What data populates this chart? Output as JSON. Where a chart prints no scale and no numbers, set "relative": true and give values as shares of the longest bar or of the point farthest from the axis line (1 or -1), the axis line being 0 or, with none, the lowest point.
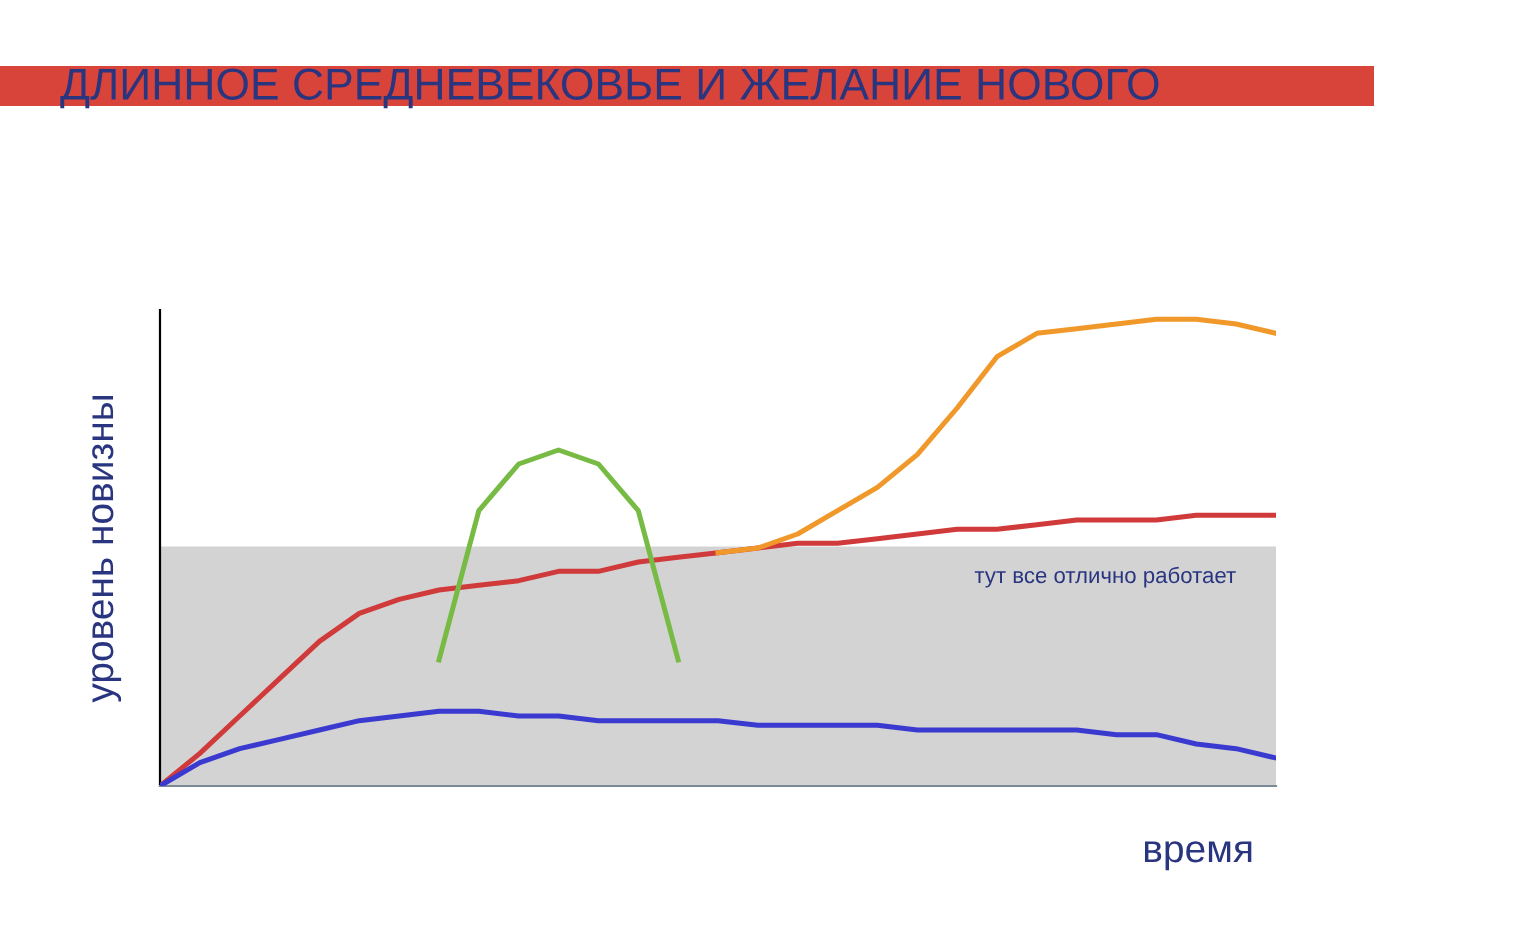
{
  "chart_data": {
    "type": "line",
    "title": "ДЛИННОЕ СРЕДНЕВЕКОВЬЕ И ЖЕЛАНИЕ НОВОГО",
    "xlabel": "время",
    "ylabel": "уровень новизны",
    "relative": true,
    "legend": false,
    "grid": false,
    "marker": "none",
    "line_style": "solid",
    "categories": [
      null,
      null,
      null,
      null,
      null,
      null,
      null,
      null,
      null,
      null,
      null,
      null,
      null,
      null,
      null,
      null,
      null,
      null,
      null,
      null,
      null,
      null,
      null,
      null,
      null,
      null,
      null,
      null,
      null
    ],
    "series": [
      {
        "color": "#d03a3a",
        "values": [
          0,
          0.07,
          0.15,
          0.23,
          0.31,
          0.37,
          0.4,
          0.42,
          0.43,
          0.44,
          0.46,
          0.46,
          0.48,
          0.49,
          0.5,
          0.51,
          0.52,
          0.52,
          0.53,
          0.54,
          0.55,
          0.55,
          0.56,
          0.57,
          0.57,
          0.57,
          0.58,
          0.58,
          0.58
        ]
      },
      {
        "color": "#3a3ad0",
        "values": [
          0,
          0.05,
          0.08,
          0.1,
          0.12,
          0.14,
          0.15,
          0.16,
          0.16,
          0.15,
          0.15,
          0.14,
          0.14,
          0.14,
          0.14,
          0.13,
          0.13,
          0.13,
          0.13,
          0.12,
          0.12,
          0.12,
          0.12,
          0.12,
          0.11,
          0.11,
          0.09,
          0.08,
          0.06
        ]
      },
      {
        "color": "#77bb44",
        "values": [
          null,
          null,
          null,
          null,
          null,
          null,
          null,
          0.27,
          0.59,
          0.69,
          0.72,
          0.69,
          0.59,
          0.27,
          null,
          null,
          null,
          null,
          null,
          null,
          null,
          null,
          null,
          null,
          null,
          null,
          null,
          null,
          null
        ]
      },
      {
        "color": "#f0982a",
        "values": [
          null,
          null,
          null,
          null,
          null,
          null,
          null,
          null,
          null,
          null,
          null,
          null,
          null,
          null,
          0.5,
          0.51,
          0.54,
          0.59,
          0.64,
          0.71,
          0.81,
          0.92,
          0.97,
          0.98,
          0.99,
          1.0,
          1.0,
          0.99,
          0.97
        ]
      }
    ],
    "bands": [
      {
        "axis": "y",
        "from": 0,
        "to": 0.51,
        "label": "тут все отлично работает",
        "color": "#d3d3d3"
      }
    ]
  }
}
